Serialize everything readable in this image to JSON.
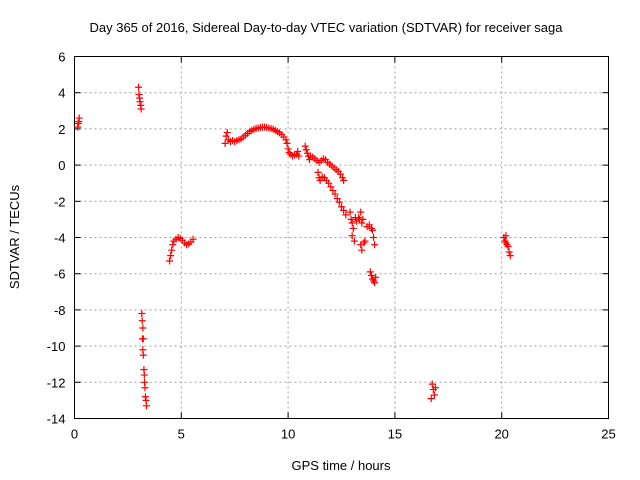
{
  "chart_data": {
    "type": "scatter",
    "title": "Day 365 of 2016, Sidereal Day-to-day VTEC variation (SDTVAR) for receiver saga",
    "xlabel": "GPS time / hours",
    "ylabel": "SDTVAR / TECUs",
    "xlim": [
      0,
      25
    ],
    "ylim": [
      -14,
      6
    ],
    "xticks": [
      0,
      5,
      10,
      15,
      20,
      25
    ],
    "yticks": [
      -14,
      -12,
      -10,
      -8,
      -6,
      -4,
      -2,
      0,
      2,
      4,
      6
    ],
    "grid": true,
    "marker": "+",
    "color": "#ff0000",
    "series": [
      {
        "name": "SDTVAR",
        "points": [
          [
            0.15,
            2.1
          ],
          [
            0.18,
            2.3
          ],
          [
            0.2,
            2.4
          ],
          [
            0.22,
            2.6
          ],
          [
            3.0,
            4.3
          ],
          [
            3.02,
            3.9
          ],
          [
            3.05,
            3.7
          ],
          [
            3.07,
            3.5
          ],
          [
            3.1,
            3.3
          ],
          [
            3.12,
            3.1
          ],
          [
            3.15,
            -8.2
          ],
          [
            3.17,
            -8.6
          ],
          [
            3.2,
            -9.0
          ],
          [
            3.18,
            -9.6
          ],
          [
            3.22,
            -9.6
          ],
          [
            3.2,
            -10.2
          ],
          [
            3.22,
            -10.5
          ],
          [
            3.25,
            -11.3
          ],
          [
            3.27,
            -11.6
          ],
          [
            3.28,
            -12.0
          ],
          [
            3.3,
            -12.3
          ],
          [
            3.32,
            -12.8
          ],
          [
            3.35,
            -13.0
          ],
          [
            3.37,
            -13.3
          ],
          [
            4.45,
            -5.3
          ],
          [
            4.5,
            -5.0
          ],
          [
            4.55,
            -4.7
          ],
          [
            4.6,
            -4.4
          ],
          [
            4.65,
            -4.2
          ],
          [
            4.75,
            -4.1
          ],
          [
            4.85,
            -4.0
          ],
          [
            4.95,
            -4.05
          ],
          [
            5.05,
            -4.15
          ],
          [
            5.15,
            -4.3
          ],
          [
            5.25,
            -4.4
          ],
          [
            5.35,
            -4.35
          ],
          [
            5.45,
            -4.25
          ],
          [
            5.55,
            -4.1
          ],
          [
            7.05,
            1.2
          ],
          [
            7.1,
            1.6
          ],
          [
            7.15,
            1.8
          ],
          [
            7.2,
            1.4
          ],
          [
            7.3,
            1.3
          ],
          [
            7.4,
            1.35
          ],
          [
            7.5,
            1.3
          ],
          [
            7.6,
            1.35
          ],
          [
            7.7,
            1.4
          ],
          [
            7.8,
            1.45
          ],
          [
            7.9,
            1.55
          ],
          [
            8.0,
            1.65
          ],
          [
            8.1,
            1.75
          ],
          [
            8.2,
            1.85
          ],
          [
            8.3,
            1.92
          ],
          [
            8.4,
            1.98
          ],
          [
            8.5,
            2.02
          ],
          [
            8.6,
            2.05
          ],
          [
            8.7,
            2.08
          ],
          [
            8.8,
            2.1
          ],
          [
            8.9,
            2.1
          ],
          [
            9.0,
            2.08
          ],
          [
            9.1,
            2.05
          ],
          [
            9.2,
            2.02
          ],
          [
            9.3,
            1.98
          ],
          [
            9.4,
            1.92
          ],
          [
            9.5,
            1.85
          ],
          [
            9.6,
            1.78
          ],
          [
            9.7,
            1.68
          ],
          [
            9.8,
            1.55
          ],
          [
            9.9,
            1.4
          ],
          [
            9.95,
            1.2
          ],
          [
            10.0,
            0.9
          ],
          [
            10.05,
            0.7
          ],
          [
            10.1,
            0.6
          ],
          [
            10.2,
            0.5
          ],
          [
            10.3,
            0.55
          ],
          [
            10.4,
            0.6
          ],
          [
            10.45,
            0.75
          ],
          [
            10.5,
            0.5
          ],
          [
            10.8,
            1.05
          ],
          [
            10.85,
            0.85
          ],
          [
            10.9,
            0.65
          ],
          [
            10.95,
            0.5
          ],
          [
            11.0,
            0.3
          ],
          [
            11.05,
            0.5
          ],
          [
            11.15,
            0.45
          ],
          [
            11.25,
            0.35
          ],
          [
            11.35,
            0.25
          ],
          [
            11.45,
            0.15
          ],
          [
            11.55,
            0.25
          ],
          [
            11.65,
            0.35
          ],
          [
            11.75,
            0.3
          ],
          [
            11.85,
            0.15
          ],
          [
            11.95,
            0.05
          ],
          [
            12.05,
            -0.05
          ],
          [
            12.15,
            -0.15
          ],
          [
            12.25,
            -0.25
          ],
          [
            12.35,
            -0.35
          ],
          [
            12.45,
            -0.5
          ],
          [
            12.55,
            -0.7
          ],
          [
            12.6,
            -0.85
          ],
          [
            11.4,
            -0.4
          ],
          [
            11.45,
            -0.7
          ],
          [
            11.5,
            -0.85
          ],
          [
            11.6,
            -0.65
          ],
          [
            11.7,
            -0.7
          ],
          [
            11.8,
            -0.85
          ],
          [
            11.9,
            -1.0
          ],
          [
            12.0,
            -1.2
          ],
          [
            12.1,
            -1.4
          ],
          [
            12.2,
            -1.6
          ],
          [
            12.3,
            -1.85
          ],
          [
            12.4,
            -2.05
          ],
          [
            12.5,
            -2.3
          ],
          [
            12.6,
            -2.5
          ],
          [
            12.7,
            -2.75
          ],
          [
            12.9,
            -2.6
          ],
          [
            12.95,
            -3.0
          ],
          [
            13.0,
            -3.2
          ],
          [
            13.05,
            -3.5
          ],
          [
            13.0,
            -3.9
          ],
          [
            13.1,
            -4.2
          ],
          [
            13.15,
            -2.9
          ],
          [
            13.2,
            -3.1
          ],
          [
            13.3,
            -2.9
          ],
          [
            13.35,
            -3.0
          ],
          [
            13.4,
            -2.6
          ],
          [
            13.45,
            -3.2
          ],
          [
            13.5,
            -3.0
          ],
          [
            13.4,
            -4.4
          ],
          [
            13.45,
            -4.7
          ],
          [
            13.55,
            -4.3
          ],
          [
            13.6,
            -4.2
          ],
          [
            13.7,
            -3.4
          ],
          [
            13.8,
            -3.3
          ],
          [
            13.9,
            -3.5
          ],
          [
            13.95,
            -3.6
          ],
          [
            14.0,
            -4.0
          ],
          [
            14.05,
            -4.4
          ],
          [
            13.85,
            -5.9
          ],
          [
            13.9,
            -6.1
          ],
          [
            13.95,
            -6.3
          ],
          [
            14.0,
            -6.4
          ],
          [
            14.05,
            -6.5
          ],
          [
            14.1,
            -6.2
          ],
          [
            16.75,
            -12.1
          ],
          [
            16.8,
            -12.4
          ],
          [
            16.85,
            -12.7
          ],
          [
            16.7,
            -12.9
          ],
          [
            16.9,
            -12.3
          ],
          [
            20.1,
            -4.0
          ],
          [
            20.15,
            -4.2
          ],
          [
            20.2,
            -4.3
          ],
          [
            20.25,
            -4.4
          ],
          [
            20.3,
            -4.5
          ],
          [
            20.35,
            -4.8
          ],
          [
            20.4,
            -5.0
          ],
          [
            20.2,
            -3.9
          ]
        ]
      }
    ]
  }
}
